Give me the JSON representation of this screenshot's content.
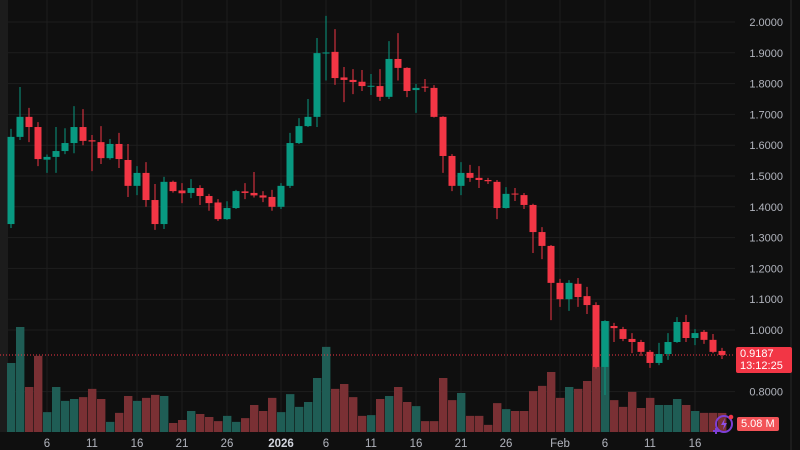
{
  "colors": {
    "up": "#089981",
    "down": "#f23645",
    "volume_up": "#1f5d55",
    "volume_down": "#7a3034",
    "background": "#0f0f0f",
    "grid": "#1e1e1e",
    "last_price_line": "#f23645",
    "assistant_icon": "#7e3fd6"
  },
  "last_price": {
    "value": "0.9187",
    "countdown": "13:12:25"
  },
  "last_volume": {
    "value": "5.08 M"
  },
  "chart_data": {
    "type": "candlestick",
    "grid": true,
    "ylim": [
      0.76,
      2.05
    ],
    "price_ticks": [
      "2.0000",
      "1.9000",
      "1.8000",
      "1.7000",
      "1.6000",
      "1.5000",
      "1.4000",
      "1.3000",
      "1.2000",
      "1.1000",
      "1.0000",
      "0.8000"
    ],
    "x_ticks": [
      {
        "label": "6",
        "date": "2025-12-06"
      },
      {
        "label": "11",
        "date": "2025-12-11"
      },
      {
        "label": "16",
        "date": "2025-12-16"
      },
      {
        "label": "21",
        "date": "2025-12-21"
      },
      {
        "label": "26",
        "date": "2025-12-26"
      },
      {
        "label": "2026",
        "date": "2026-01-01",
        "strong": true
      },
      {
        "label": "6",
        "date": "2026-01-06"
      },
      {
        "label": "11",
        "date": "2026-01-11"
      },
      {
        "label": "16",
        "date": "2026-01-16"
      },
      {
        "label": "21",
        "date": "2026-01-21"
      },
      {
        "label": "26",
        "date": "2026-01-26"
      },
      {
        "label": "Feb",
        "date": "2026-02-01"
      },
      {
        "label": "6",
        "date": "2026-02-06"
      },
      {
        "label": "11",
        "date": "2026-02-11"
      },
      {
        "label": "16",
        "date": "2026-02-16"
      }
    ],
    "dates": [
      "2025-12-02",
      "2025-12-03",
      "2025-12-04",
      "2025-12-05",
      "2025-12-06",
      "2025-12-07",
      "2025-12-08",
      "2025-12-09",
      "2025-12-10",
      "2025-12-11",
      "2025-12-12",
      "2025-12-13",
      "2025-12-14",
      "2025-12-15",
      "2025-12-16",
      "2025-12-17",
      "2025-12-18",
      "2025-12-19",
      "2025-12-20",
      "2025-12-21",
      "2025-12-22",
      "2025-12-23",
      "2025-12-24",
      "2025-12-25",
      "2025-12-26",
      "2025-12-27",
      "2025-12-28",
      "2025-12-29",
      "2025-12-30",
      "2025-12-31",
      "2026-01-01",
      "2026-01-02",
      "2026-01-03",
      "2026-01-04",
      "2026-01-05",
      "2026-01-06",
      "2026-01-07",
      "2026-01-08",
      "2026-01-09",
      "2026-01-10",
      "2026-01-11",
      "2026-01-12",
      "2026-01-13",
      "2026-01-14",
      "2026-01-15",
      "2026-01-16",
      "2026-01-17",
      "2026-01-18",
      "2026-01-19",
      "2026-01-20",
      "2026-01-21",
      "2026-01-22",
      "2026-01-23",
      "2026-01-24",
      "2026-01-25",
      "2026-01-26",
      "2026-01-27",
      "2026-01-28",
      "2026-01-29",
      "2026-01-30",
      "2026-01-31",
      "2026-02-01",
      "2026-02-02",
      "2026-02-03",
      "2026-02-04",
      "2026-02-05",
      "2026-02-06",
      "2026-02-07",
      "2026-02-08",
      "2026-02-09",
      "2026-02-10",
      "2026-02-11",
      "2026-02-12",
      "2026-02-13",
      "2026-02-14",
      "2026-02-15",
      "2026-02-16",
      "2026-02-17",
      "2026-02-18",
      "2026-02-19"
    ],
    "ohlc": [
      [
        1.344,
        1.653,
        1.331,
        1.627
      ],
      [
        1.627,
        1.789,
        1.617,
        1.692
      ],
      [
        1.692,
        1.721,
        1.61,
        1.659
      ],
      [
        1.659,
        1.675,
        1.532,
        1.555
      ],
      [
        1.553,
        1.57,
        1.51,
        1.562
      ],
      [
        1.562,
        1.659,
        1.51,
        1.581
      ],
      [
        1.581,
        1.655,
        1.571,
        1.607
      ],
      [
        1.607,
        1.727,
        1.574,
        1.659
      ],
      [
        1.659,
        1.717,
        1.6,
        1.614
      ],
      [
        1.616,
        1.633,
        1.516,
        1.612
      ],
      [
        1.61,
        1.662,
        1.539,
        1.558
      ],
      [
        1.558,
        1.62,
        1.553,
        1.604
      ],
      [
        1.604,
        1.64,
        1.526,
        1.555
      ],
      [
        1.552,
        1.604,
        1.432,
        1.468
      ],
      [
        1.468,
        1.532,
        1.438,
        1.51
      ],
      [
        1.51,
        1.545,
        1.4,
        1.422
      ],
      [
        1.422,
        1.474,
        1.325,
        1.344
      ],
      [
        1.344,
        1.497,
        1.328,
        1.481
      ],
      [
        1.481,
        1.485,
        1.446,
        1.451
      ],
      [
        1.453,
        1.477,
        1.412,
        1.444
      ],
      [
        1.445,
        1.49,
        1.428,
        1.461
      ],
      [
        1.461,
        1.47,
        1.406,
        1.435
      ],
      [
        1.435,
        1.442,
        1.387,
        1.412
      ],
      [
        1.414,
        1.425,
        1.354,
        1.36
      ],
      [
        1.36,
        1.418,
        1.357,
        1.396
      ],
      [
        1.396,
        1.455,
        1.393,
        1.451
      ],
      [
        1.45,
        1.477,
        1.425,
        1.445
      ],
      [
        1.445,
        1.513,
        1.43,
        1.437
      ],
      [
        1.437,
        1.451,
        1.415,
        1.43
      ],
      [
        1.432,
        1.455,
        1.387,
        1.4
      ],
      [
        1.4,
        1.477,
        1.393,
        1.468
      ],
      [
        1.468,
        1.64,
        1.461,
        1.607
      ],
      [
        1.607,
        1.688,
        1.604,
        1.662
      ],
      [
        1.662,
        1.75,
        1.659,
        1.692
      ],
      [
        1.692,
        1.948,
        1.659,
        1.899
      ],
      [
        1.898,
        2.02,
        1.81,
        1.901
      ],
      [
        1.903,
        1.977,
        1.796,
        1.818
      ],
      [
        1.82,
        1.854,
        1.74,
        1.812
      ],
      [
        1.812,
        1.847,
        1.766,
        1.805
      ],
      [
        1.806,
        1.844,
        1.776,
        1.792
      ],
      [
        1.79,
        1.831,
        1.763,
        1.793
      ],
      [
        1.792,
        1.847,
        1.744,
        1.757
      ],
      [
        1.757,
        1.938,
        1.75,
        1.88
      ],
      [
        1.88,
        1.964,
        1.81,
        1.851
      ],
      [
        1.851,
        1.853,
        1.756,
        1.776
      ],
      [
        1.779,
        1.799,
        1.705,
        1.786
      ],
      [
        1.79,
        1.815,
        1.773,
        1.787
      ],
      [
        1.786,
        1.795,
        1.69,
        1.692
      ],
      [
        1.692,
        1.694,
        1.51,
        1.565
      ],
      [
        1.565,
        1.571,
        1.451,
        1.468
      ],
      [
        1.468,
        1.545,
        1.438,
        1.51
      ],
      [
        1.51,
        1.536,
        1.481,
        1.494
      ],
      [
        1.494,
        1.532,
        1.461,
        1.487
      ],
      [
        1.487,
        1.494,
        1.474,
        1.483
      ],
      [
        1.481,
        1.487,
        1.36,
        1.396
      ],
      [
        1.396,
        1.464,
        1.394,
        1.442
      ],
      [
        1.443,
        1.461,
        1.419,
        1.44
      ],
      [
        1.438,
        1.445,
        1.393,
        1.406
      ],
      [
        1.406,
        1.41,
        1.25,
        1.318
      ],
      [
        1.318,
        1.334,
        1.23,
        1.273
      ],
      [
        1.273,
        1.276,
        1.032,
        1.153
      ],
      [
        1.153,
        1.166,
        1.075,
        1.1
      ],
      [
        1.1,
        1.162,
        1.062,
        1.153
      ],
      [
        1.15,
        1.169,
        1.075,
        1.107
      ],
      [
        1.11,
        1.14,
        1.052,
        1.081
      ],
      [
        1.081,
        1.09,
        0.875,
        0.88
      ],
      [
        0.88,
        1.032,
        0.789,
        1.029
      ],
      [
        1.013,
        1.023,
        0.961,
        1.006
      ],
      [
        1.003,
        1.01,
        0.964,
        0.971
      ],
      [
        0.971,
        0.99,
        0.925,
        0.961
      ],
      [
        0.961,
        0.968,
        0.916,
        0.929
      ],
      [
        0.929,
        0.935,
        0.877,
        0.893
      ],
      [
        0.893,
        0.958,
        0.886,
        0.922
      ],
      [
        0.922,
        0.99,
        0.903,
        0.961
      ],
      [
        0.961,
        1.042,
        0.958,
        1.026
      ],
      [
        1.026,
        1.049,
        0.961,
        0.974
      ],
      [
        0.974,
        1.003,
        0.951,
        0.99
      ],
      [
        0.994,
        1.0,
        0.955,
        0.968
      ],
      [
        0.968,
        0.987,
        0.925,
        0.929
      ],
      [
        0.932,
        0.942,
        0.906,
        0.9187
      ]
    ],
    "volume_unit": "M",
    "volume": [
      18.4,
      28.0,
      12.0,
      20.3,
      5.3,
      12.0,
      8.3,
      8.8,
      9.3,
      11.5,
      8.8,
      2.7,
      5.1,
      9.6,
      8.3,
      9.1,
      9.9,
      9.6,
      2.4,
      3.2,
      5.6,
      4.8,
      4.0,
      2.9,
      4.3,
      2.7,
      3.7,
      7.2,
      5.6,
      9.1,
      5.3,
      10.1,
      6.7,
      8.0,
      14.4,
      22.7,
      11.5,
      12.8,
      9.3,
      4.3,
      4.5,
      8.8,
      9.6,
      12.0,
      8.0,
      6.9,
      2.9,
      2.9,
      14.4,
      8.5,
      10.4,
      4.3,
      4.3,
      1.9,
      7.7,
      6.1,
      5.6,
      5.6,
      10.9,
      12.3,
      16.0,
      9.1,
      12.0,
      11.5,
      13.6,
      17.4,
      29.6,
      8.5,
      6.7,
      10.7,
      6.4,
      9.1,
      7.2,
      7.2,
      8.8,
      7.2,
      5.6,
      5.1,
      5.1,
      5.08
    ]
  }
}
